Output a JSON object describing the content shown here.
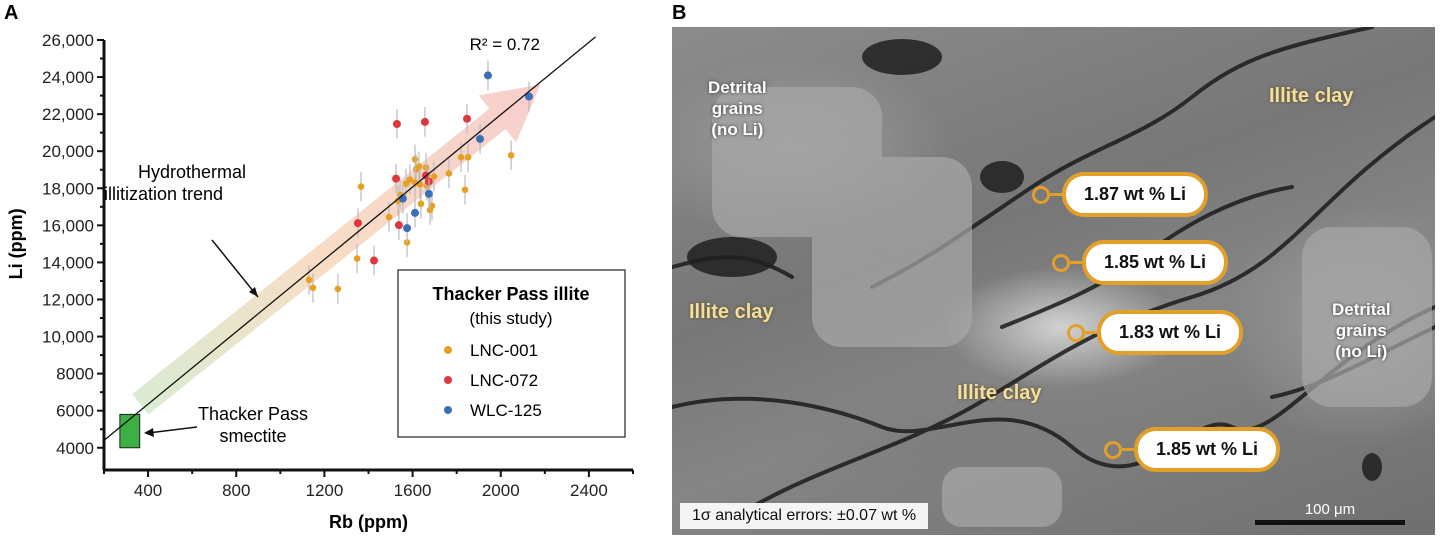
{
  "panel_a": {
    "label": "A"
  },
  "panel_b": {
    "label": "B",
    "detrital_left": [
      "Detrital",
      "grains",
      "(no Li)"
    ],
    "detrital_right": [
      "Detrital",
      "grains",
      "(no Li)"
    ],
    "illite_labels": [
      "Illite clay",
      "Illite clay",
      "Illite clay"
    ],
    "measurements": [
      "1.87 wt % Li",
      "1.85 wt % Li",
      "1.83 wt % Li",
      "1.85 wt % Li"
    ],
    "error_note": "1σ analytical errors: ±0.07 wt %",
    "scale_bar": "100 μm",
    "callout_color": "#e2a02a"
  },
  "chart_data": {
    "type": "scatter",
    "xlabel": "Rb (ppm)",
    "ylabel": "Li (ppm)",
    "xlim": [
      200,
      2600
    ],
    "ylim": [
      2800,
      26000
    ],
    "xticks": [
      400,
      800,
      1200,
      1600,
      2000,
      2400
    ],
    "xtick_labels": [
      "400",
      "800",
      "1200",
      "1600",
      "2000",
      "2400"
    ],
    "yticks": [
      4000,
      6000,
      8000,
      10000,
      12000,
      14000,
      16000,
      18000,
      20000,
      22000,
      24000,
      26000
    ],
    "ytick_labels": [
      "4000",
      "6000",
      "8000",
      "10,000",
      "12,000",
      "14,000",
      "16,000",
      "18,000",
      "20,000",
      "22,000",
      "24,000",
      "26,000"
    ],
    "grid": false,
    "regression": {
      "label": "R² = 0.72",
      "r2": 0.72,
      "from": [
        200,
        4400
      ],
      "to": [
        2430,
        26170
      ]
    },
    "trend_arrow": {
      "label": [
        "Hydrothermal",
        "illitization trend"
      ],
      "from": [
        365,
        6350
      ],
      "to": [
        2180,
        23600
      ]
    },
    "smectite": {
      "label": [
        "Thacker Pass",
        "smectite"
      ],
      "rb": [
        272,
        362
      ],
      "li": [
        4000,
        5800
      ],
      "color": "#3cb043"
    },
    "legend": {
      "title": "Thacker Pass illite",
      "subtitle": "(this study)",
      "placement": "bottom-right"
    },
    "error_bar_li": 800,
    "series": [
      {
        "name": "LNC-001",
        "color": "#e8a023",
        "points": [
          [
            1366,
            18090
          ],
          [
            1611,
            19560
          ],
          [
            1629,
            19180
          ],
          [
            1661,
            19120
          ],
          [
            1616,
            19020
          ],
          [
            1697,
            18630
          ],
          [
            1588,
            18470
          ],
          [
            1611,
            18310
          ],
          [
            1634,
            18200
          ],
          [
            1570,
            18250
          ],
          [
            1665,
            18140
          ],
          [
            1543,
            17650
          ],
          [
            1534,
            17320
          ],
          [
            1765,
            18800
          ],
          [
            1820,
            19670
          ],
          [
            1852,
            19670
          ],
          [
            2047,
            19780
          ],
          [
            1838,
            17920
          ],
          [
            1638,
            17160
          ],
          [
            1688,
            17050
          ],
          [
            1679,
            16830
          ],
          [
            1493,
            16450
          ],
          [
            1575,
            15080
          ],
          [
            1348,
            14210
          ],
          [
            1130,
            13060
          ],
          [
            1148,
            12630
          ],
          [
            1261,
            12570
          ]
        ]
      },
      {
        "name": "LNC-072",
        "color": "#e0373f",
        "points": [
          [
            1529,
            21470
          ],
          [
            1656,
            21580
          ],
          [
            1847,
            21750
          ],
          [
            1525,
            18520
          ],
          [
            1661,
            18690
          ],
          [
            1674,
            18360
          ],
          [
            1352,
            16120
          ],
          [
            1538,
            16010
          ],
          [
            1425,
            14100
          ]
        ]
      },
      {
        "name": "WLC-125",
        "color": "#3b6fb8",
        "points": [
          [
            1942,
            24090
          ],
          [
            2128,
            22950
          ],
          [
            1906,
            20660
          ],
          [
            1556,
            17440
          ],
          [
            1674,
            17700
          ],
          [
            1611,
            16670
          ],
          [
            1575,
            15850
          ]
        ]
      }
    ]
  }
}
